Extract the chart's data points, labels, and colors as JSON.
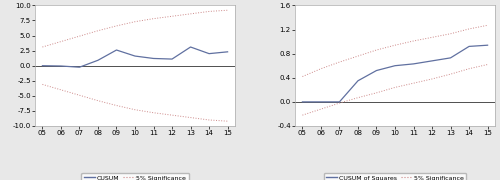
{
  "years": [
    5,
    6,
    7,
    8,
    9,
    10,
    11,
    12,
    13,
    14,
    15
  ],
  "cusum": [
    0.0,
    -0.05,
    -0.25,
    0.9,
    2.6,
    1.6,
    1.2,
    1.1,
    3.1,
    2.0,
    2.3
  ],
  "cusum_upper": [
    3.1,
    4.0,
    4.9,
    5.8,
    6.6,
    7.3,
    7.8,
    8.2,
    8.6,
    9.0,
    9.2
  ],
  "cusum_lower": [
    -3.1,
    -4.0,
    -4.9,
    -5.8,
    -6.6,
    -7.3,
    -7.8,
    -8.2,
    -8.6,
    -9.0,
    -9.2
  ],
  "cusum_ylim": [
    -10.0,
    10.0
  ],
  "cusum_yticks": [
    -10.0,
    -7.5,
    -5.0,
    -2.5,
    0.0,
    2.5,
    5.0,
    7.5,
    10.0
  ],
  "cusumsq": [
    0.0,
    0.0,
    0.0,
    0.35,
    0.52,
    0.6,
    0.63,
    0.68,
    0.73,
    0.92,
    0.94
  ],
  "cusumsq_upper": [
    0.42,
    0.55,
    0.66,
    0.76,
    0.86,
    0.94,
    1.01,
    1.07,
    1.13,
    1.21,
    1.27
  ],
  "cusumsq_lower": [
    -0.22,
    -0.12,
    -0.02,
    0.07,
    0.15,
    0.24,
    0.31,
    0.38,
    0.46,
    0.55,
    0.62
  ],
  "cusumsq_ylim": [
    -0.4,
    1.6
  ],
  "cusumsq_yticks": [
    -0.4,
    0.0,
    0.4,
    0.8,
    1.2,
    1.6
  ],
  "x_ticks": [
    5,
    6,
    7,
    8,
    9,
    10,
    11,
    12,
    13,
    14,
    15
  ],
  "x_tick_labels": [
    "05",
    "06",
    "07",
    "08",
    "09",
    "10",
    "11",
    "12",
    "13",
    "14",
    "15"
  ],
  "cusum_line_color": "#6070a0",
  "sig_line_color": "#cc8888",
  "zero_line_color": "#333333",
  "legend1_labels": [
    "CUSUM",
    "5% Significance"
  ],
  "legend2_labels": [
    "CUSUM of Squares",
    "5% Significance"
  ],
  "fig_bg": "#e8e8e8",
  "plot_bg": "#ffffff"
}
